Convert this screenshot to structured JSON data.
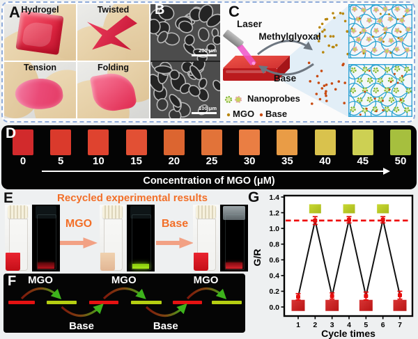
{
  "panels": {
    "a": {
      "label": "A",
      "photos": [
        {
          "caption": "Hydrogel"
        },
        {
          "caption": "Twisted"
        },
        {
          "caption": "Tension"
        },
        {
          "caption": "Folding"
        }
      ]
    },
    "b": {
      "label": "B",
      "scale_bar_top": "200 μm",
      "scale_bar_bottom": "100 μm"
    },
    "c": {
      "label": "C",
      "laser": "Laser",
      "forward": "Methylglyoxal",
      "reverse": "Base",
      "legend": {
        "nanoprobes": "Nanoprobes",
        "mgo": "MGO",
        "base": "Base"
      },
      "colors": {
        "mesh": "#2ba4d2",
        "mgo_dot": "#b8870e",
        "base_dot": "#c84a10",
        "probe_red_petal": "#e8a0ae",
        "probe_red_center": "#c6d45c",
        "probe_green_petal": "#7ab32f",
        "probe_green_center": "#dfe9a9"
      }
    },
    "d": {
      "label": "D",
      "caption": "Concentration of MGO (μM)",
      "swatches": [
        {
          "value": "0",
          "color": "#d22a2c"
        },
        {
          "value": "5",
          "color": "#da3a2c"
        },
        {
          "value": "10",
          "color": "#df432f"
        },
        {
          "value": "15",
          "color": "#e25034"
        },
        {
          "value": "20",
          "color": "#dc6530"
        },
        {
          "value": "25",
          "color": "#e27339"
        },
        {
          "value": "30",
          "color": "#ea7e43"
        },
        {
          "value": "35",
          "color": "#e99c46"
        },
        {
          "value": "40",
          "color": "#d9c24d"
        },
        {
          "value": "45",
          "color": "#cdd053"
        },
        {
          "value": "50",
          "color": "#a6bf3e"
        }
      ]
    },
    "e": {
      "label": "E",
      "title": "Recycled experimental results",
      "step1": "MGO",
      "step2": "Base"
    },
    "f": {
      "label": "F",
      "top_labels": [
        "MGO",
        "MGO",
        "MGO"
      ],
      "bottom_labels": [
        "Base",
        "Base"
      ],
      "red_bar": "#e51212",
      "green_bar": "#b5ce12",
      "sequence": [
        "red",
        "green",
        "red",
        "green",
        "red",
        "green"
      ]
    },
    "g": {
      "label": "G"
    }
  },
  "chart_data": {
    "type": "scatter",
    "x": [
      1,
      2,
      3,
      4,
      5,
      6,
      7
    ],
    "y": [
      0.13,
      1.1,
      0.14,
      1.11,
      0.14,
      1.11,
      0.15
    ],
    "y_err": [
      0.04,
      0.05,
      0.04,
      0.04,
      0.05,
      0.04,
      0.05
    ],
    "reference_line_y": 1.1,
    "xlabel": "Cycle times",
    "ylabel": "G/R",
    "xticks": [
      1,
      2,
      3,
      4,
      5,
      6,
      7
    ],
    "yticks": [
      "0.0",
      "0.2",
      "0.4",
      "0.6",
      "0.8",
      "1.0",
      "1.2",
      "1.4"
    ],
    "ylim": [
      -0.115,
      1.4
    ],
    "green_swatch_positions": [
      2,
      4,
      6
    ],
    "green_swatch_value": 1.25,
    "red_swatch_positions": [
      1,
      3,
      5,
      7
    ],
    "red_swatch_value": 0.02,
    "marker_color": "#e60d0d",
    "line_color": "#111111",
    "reference_line_color": "#ee0000",
    "green_swatch_color": "#b5c626",
    "red_swatch_color": "#c8211f",
    "legend_position": "none",
    "grid": false
  }
}
